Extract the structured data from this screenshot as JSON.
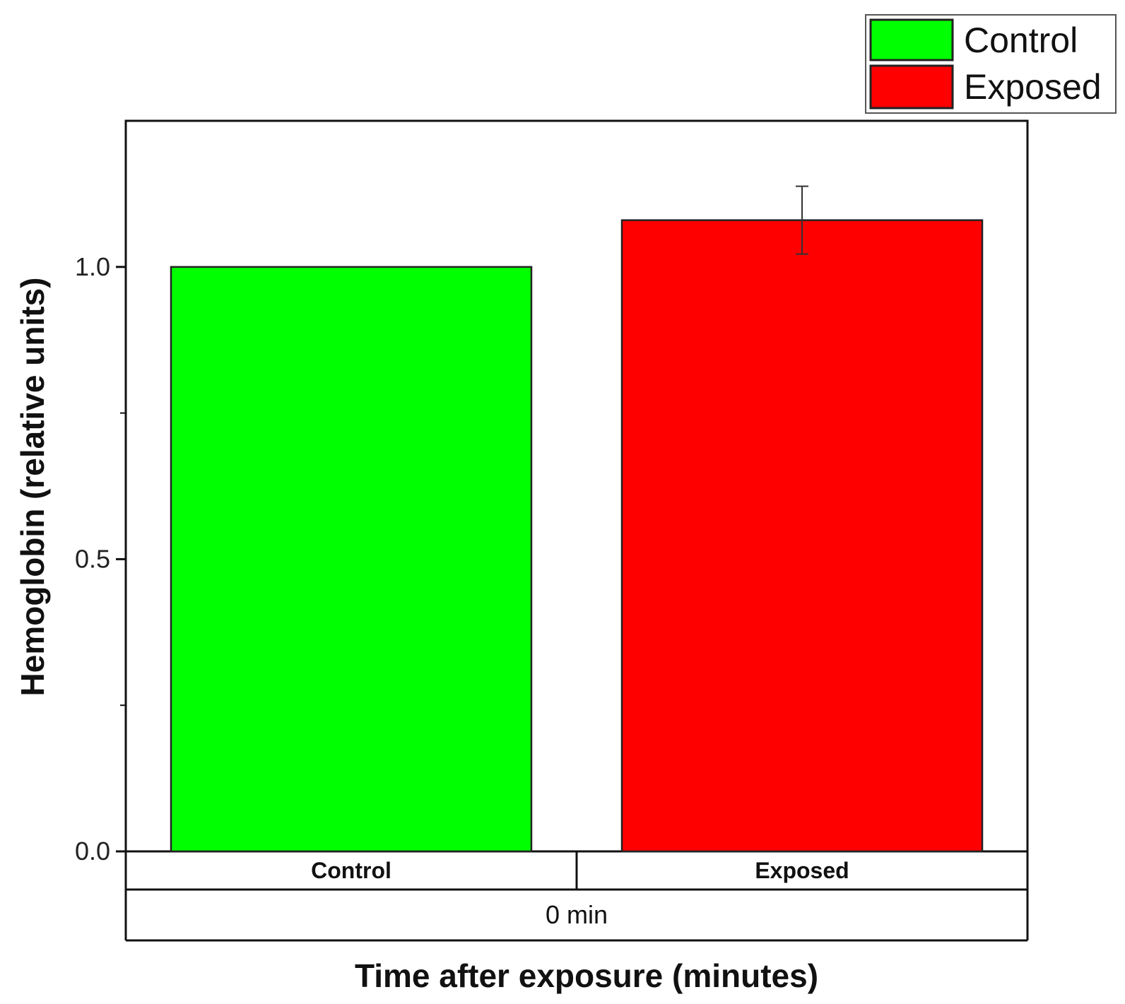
{
  "chart_data": {
    "type": "bar",
    "categories": [
      "Control",
      "Exposed"
    ],
    "values": [
      1.0,
      1.08
    ],
    "errors": [
      0,
      0.058
    ],
    "colors": [
      "#00ff00",
      "#ff0000"
    ],
    "group_label": "0 min",
    "xlabel": "Time after exposure (minutes)",
    "ylabel": "Hemoglobin (relative units)",
    "ylim": [
      0,
      1.25
    ],
    "yticks": [
      {
        "value": 0.0,
        "label": "0.0"
      },
      {
        "value": 0.5,
        "label": "0.5"
      },
      {
        "value": 1.0,
        "label": "1.0"
      }
    ],
    "minor_yticks": [
      0.25,
      0.75
    ],
    "legend": {
      "placement": "top-right",
      "entries": [
        {
          "label": "Control",
          "color": "#00ff00"
        },
        {
          "label": "Exposed",
          "color": "#ff0000"
        }
      ]
    },
    "grid": false
  }
}
